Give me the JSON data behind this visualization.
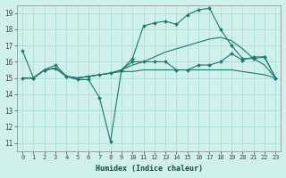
{
  "background_color": "#cff0eb",
  "grid_color": "#aaddd8",
  "line_color": "#1a7a6e",
  "xlabel": "Humidex (Indice chaleur)",
  "xlim": [
    -0.5,
    23.5
  ],
  "ylim": [
    10.5,
    19.5
  ],
  "yticks": [
    11,
    12,
    13,
    14,
    15,
    16,
    17,
    18,
    19
  ],
  "xticks": [
    0,
    1,
    2,
    3,
    4,
    5,
    6,
    7,
    8,
    9,
    10,
    11,
    12,
    13,
    14,
    15,
    16,
    17,
    18,
    19,
    20,
    21,
    22,
    23
  ],
  "series": [
    {
      "x": [
        0,
        1,
        2,
        3,
        4,
        5,
        6,
        7,
        8,
        9,
        10,
        11,
        12,
        13,
        14,
        15,
        16,
        17,
        18,
        19,
        20,
        21,
        22,
        23
      ],
      "y": [
        16.7,
        15.0,
        15.5,
        15.8,
        15.1,
        14.9,
        14.9,
        13.8,
        11.1,
        15.5,
        16.0,
        16.0,
        16.0,
        16.0,
        15.5,
        15.5,
        15.8,
        15.8,
        16.0,
        16.5,
        16.1,
        16.3,
        16.3,
        15.0
      ],
      "marker": true
    },
    {
      "x": [
        0,
        1,
        2,
        3,
        4,
        5,
        6,
        7,
        8,
        9,
        10,
        11,
        12,
        13,
        14,
        15,
        16,
        17,
        18,
        19,
        20,
        21,
        22,
        23
      ],
      "y": [
        15.0,
        15.0,
        15.5,
        15.6,
        15.1,
        15.0,
        15.1,
        15.2,
        15.3,
        15.5,
        15.8,
        16.0,
        16.3,
        16.6,
        16.8,
        17.0,
        17.2,
        17.4,
        17.5,
        17.3,
        16.8,
        16.2,
        15.8,
        15.0
      ],
      "marker": false
    },
    {
      "x": [
        0,
        1,
        2,
        3,
        4,
        5,
        6,
        7,
        8,
        9,
        10,
        11,
        12,
        13,
        14,
        15,
        16,
        17,
        18,
        19,
        20,
        21,
        22,
        23
      ],
      "y": [
        15.0,
        15.0,
        15.5,
        15.6,
        15.1,
        15.0,
        15.1,
        15.2,
        15.3,
        15.4,
        15.4,
        15.5,
        15.5,
        15.5,
        15.5,
        15.5,
        15.5,
        15.5,
        15.5,
        15.5,
        15.4,
        15.3,
        15.2,
        15.0
      ],
      "marker": false
    },
    {
      "x": [
        0,
        1,
        2,
        3,
        4,
        5,
        6,
        7,
        8,
        9,
        10,
        11,
        12,
        13,
        14,
        15,
        16,
        17,
        18,
        19,
        20,
        21,
        22,
        23
      ],
      "y": [
        15.0,
        15.0,
        15.5,
        15.6,
        15.1,
        15.0,
        15.1,
        15.2,
        15.3,
        15.5,
        16.2,
        18.2,
        18.4,
        18.5,
        18.3,
        18.9,
        19.2,
        19.3,
        18.0,
        17.0,
        16.2,
        16.2,
        16.3,
        15.0
      ],
      "marker": true
    }
  ]
}
